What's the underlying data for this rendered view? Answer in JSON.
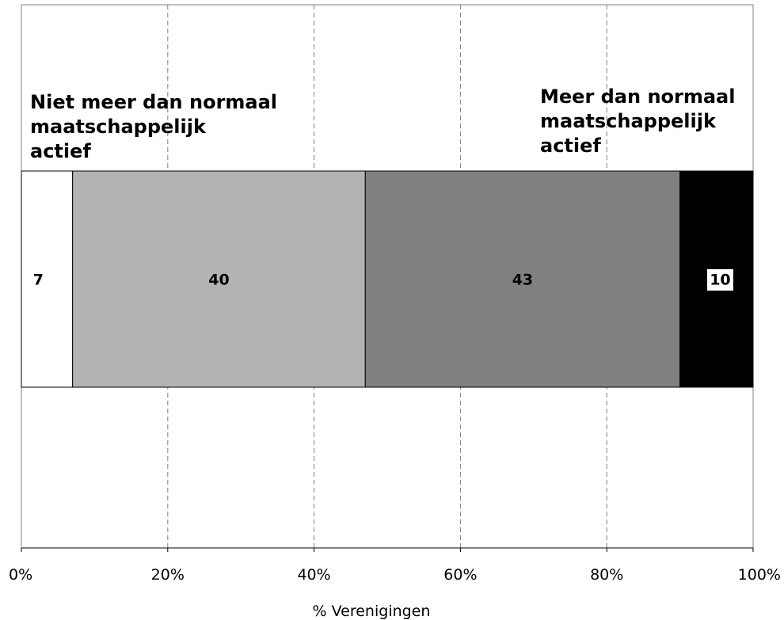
{
  "chart_data": {
    "type": "bar",
    "orientation": "horizontal",
    "stacked": "percent",
    "categories": [
      ""
    ],
    "series": [
      {
        "values": [
          7
        ],
        "color": "#ffffff",
        "label_color": "#000000"
      },
      {
        "values": [
          40
        ],
        "color": "#b3b3b3",
        "label_color": "#000000"
      },
      {
        "values": [
          43
        ],
        "color": "#808080",
        "label_color": "#000000"
      },
      {
        "values": [
          10
        ],
        "color": "#000000",
        "label_color": "#000000",
        "label_box": "#ffffff"
      }
    ],
    "data_labels": [
      "7",
      "40",
      "43",
      "10"
    ],
    "xlabel": "% Verenigingen",
    "xlim": [
      0,
      100
    ],
    "xticks": [
      "0%",
      "20%",
      "40%",
      "60%",
      "80%",
      "100%"
    ],
    "grid": "vertical dashed",
    "annotations": {
      "left": [
        "Niet meer dan normaal",
        "maatschappelijk",
        "actief"
      ],
      "right": [
        "Meer dan normaal",
        "maatschappelijk",
        "actief"
      ]
    }
  }
}
